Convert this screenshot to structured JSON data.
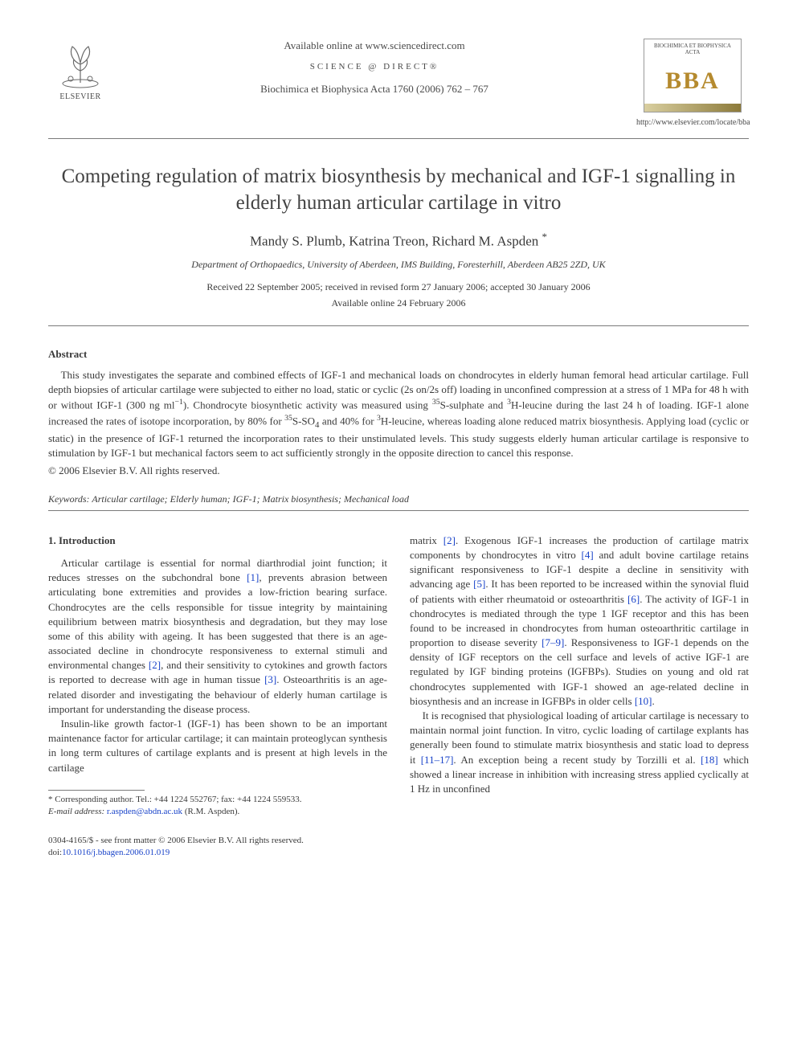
{
  "colors": {
    "text": "#3a3a3a",
    "link": "#1943c9",
    "rule": "#7a7a7a",
    "bba_gold": "#b58a2e",
    "background": "#ffffff"
  },
  "typography": {
    "body_family": "Times New Roman",
    "body_size_pt": 13,
    "title_size_pt": 25,
    "authors_size_pt": 17,
    "small_size_pt": 12,
    "footnote_size_pt": 11
  },
  "header": {
    "elsevier_label": "ELSEVIER",
    "available_line": "Available online at www.sciencedirect.com",
    "sciencedirect_logo_text": "SCIENCE @ DIRECT®",
    "journal_line": "Biochimica et Biophysica Acta 1760 (2006) 762 – 767",
    "bba_box_top": "BIOCHIMICA ET BIOPHYSICA ACTA",
    "bba_big": "BBA",
    "bba_url": "http://www.elsevier.com/locate/bba"
  },
  "title": "Competing regulation of matrix biosynthesis by mechanical and IGF-1 signalling in elderly human articular cartilage in vitro",
  "authors_line": "Mandy S. Plumb, Katrina Treon, Richard M. Aspden ",
  "corresponding_marker": "*",
  "affiliation": "Department of Orthopaedics, University of Aberdeen, IMS Building, Foresterhill, Aberdeen AB25 2ZD, UK",
  "dates_line1": "Received 22 September 2005; received in revised form 27 January 2006; accepted 30 January 2006",
  "dates_line2": "Available online 24 February 2006",
  "abstract_heading": "Abstract",
  "abstract_html": "This study investigates the separate and combined effects of IGF-1 and mechanical loads on chondrocytes in elderly human femoral head articular cartilage. Full depth biopsies of articular cartilage were subjected to either no load, static or cyclic (2s on/2s off) loading in unconfined compression at a stress of 1 MPa for 48 h with or without IGF-1 (300 ng ml<sup>−1</sup>). Chondrocyte biosynthetic activity was measured using <sup>35</sup>S-sulphate and <sup>3</sup>H-leucine during the last 24 h of loading. IGF-1 alone increased the rates of isotope incorporation, by 80% for <sup>35</sup>S-SO<sub>4</sub> and 40% for <sup>3</sup>H-leucine, whereas loading alone reduced matrix biosynthesis. Applying load (cyclic or static) in the presence of IGF-1 returned the incorporation rates to their unstimulated levels. This study suggests elderly human articular cartilage is responsive to stimulation by IGF-1 but mechanical factors seem to act sufficiently strongly in the opposite direction to cancel this response.",
  "copyright_line": "© 2006 Elsevier B.V. All rights reserved.",
  "keywords_label": "Keywords:",
  "keywords_value": "Articular cartilage; Elderly human; IGF-1; Matrix biosynthesis; Mechanical load",
  "intro_heading": "1. Introduction",
  "col_left_p1": "Articular cartilage is essential for normal diarthrodial joint function; it reduces stresses on the subchondral bone <a class=\"ref\" data-name=\"citation-link\" data-interactable=\"true\">[1]</a>, prevents abrasion between articulating bone extremities and provides a low-friction bearing surface. Chondrocytes are the cells responsible for tissue integrity by maintaining equilibrium between matrix biosynthesis and degradation, but they may lose some of this ability with ageing. It has been suggested that there is an age-associated decline in chondrocyte responsiveness to external stimuli and environmental changes <a class=\"ref\" data-name=\"citation-link\" data-interactable=\"true\">[2]</a>, and their sensitivity to cytokines and growth factors is reported to decrease with age in human tissue <a class=\"ref\" data-name=\"citation-link\" data-interactable=\"true\">[3]</a>. Osteoarthritis is an age-related disorder and investigating the behaviour of elderly human cartilage is important for understanding the disease process.",
  "col_left_p2": "Insulin-like growth factor-1 (IGF-1) has been shown to be an important maintenance factor for articular cartilage; it can maintain proteoglycan synthesis in long term cultures of cartilage explants and is present at high levels in the cartilage",
  "col_right_p1": "matrix <a class=\"ref\" data-name=\"citation-link\" data-interactable=\"true\">[2]</a>. Exogenous IGF-1 increases the production of cartilage matrix components by chondrocytes in vitro <a class=\"ref\" data-name=\"citation-link\" data-interactable=\"true\">[4]</a> and adult bovine cartilage retains significant responsiveness to IGF-1 despite a decline in sensitivity with advancing age <a class=\"ref\" data-name=\"citation-link\" data-interactable=\"true\">[5]</a>. It has been reported to be increased within the synovial fluid of patients with either rheumatoid or osteoarthritis <a class=\"ref\" data-name=\"citation-link\" data-interactable=\"true\">[6]</a>. The activity of IGF-1 in chondrocytes is mediated through the type 1 IGF receptor and this has been found to be increased in chondrocytes from human osteoarthritic cartilage in proportion to disease severity <a class=\"ref\" data-name=\"citation-link\" data-interactable=\"true\">[7–9]</a>. Responsiveness to IGF-1 depends on the density of IGF receptors on the cell surface and levels of active IGF-1 are regulated by IGF binding proteins (IGFBPs). Studies on young and old rat chondrocytes supplemented with IGF-1 showed an age-related decline in biosynthesis and an increase in IGFBPs in older cells <a class=\"ref\" data-name=\"citation-link\" data-interactable=\"true\">[10]</a>.",
  "col_right_p2": "It is recognised that physiological loading of articular cartilage is necessary to maintain normal joint function. In vitro, cyclic loading of cartilage explants has generally been found to stimulate matrix biosynthesis and static load to depress it <a class=\"ref\" data-name=\"citation-link\" data-interactable=\"true\">[11–17]</a>. An exception being a recent study by Torzilli et al. <a class=\"ref\" data-name=\"citation-link\" data-interactable=\"true\">[18]</a> which showed a linear increase in inhibition with increasing stress applied cyclically at 1 Hz in unconfined",
  "footnote_corr": "* Corresponding author. Tel.: +44 1224 552767; fax: +44 1224 559533.",
  "footnote_email_label": "E-mail address:",
  "footnote_email": "r.aspden@abdn.ac.uk",
  "footnote_email_person": "(R.M. Aspden).",
  "bottom_issn": "0304-4165/$ - see front matter © 2006 Elsevier B.V. All rights reserved.",
  "bottom_doi_label": "doi:",
  "bottom_doi": "10.1016/j.bbagen.2006.01.019"
}
